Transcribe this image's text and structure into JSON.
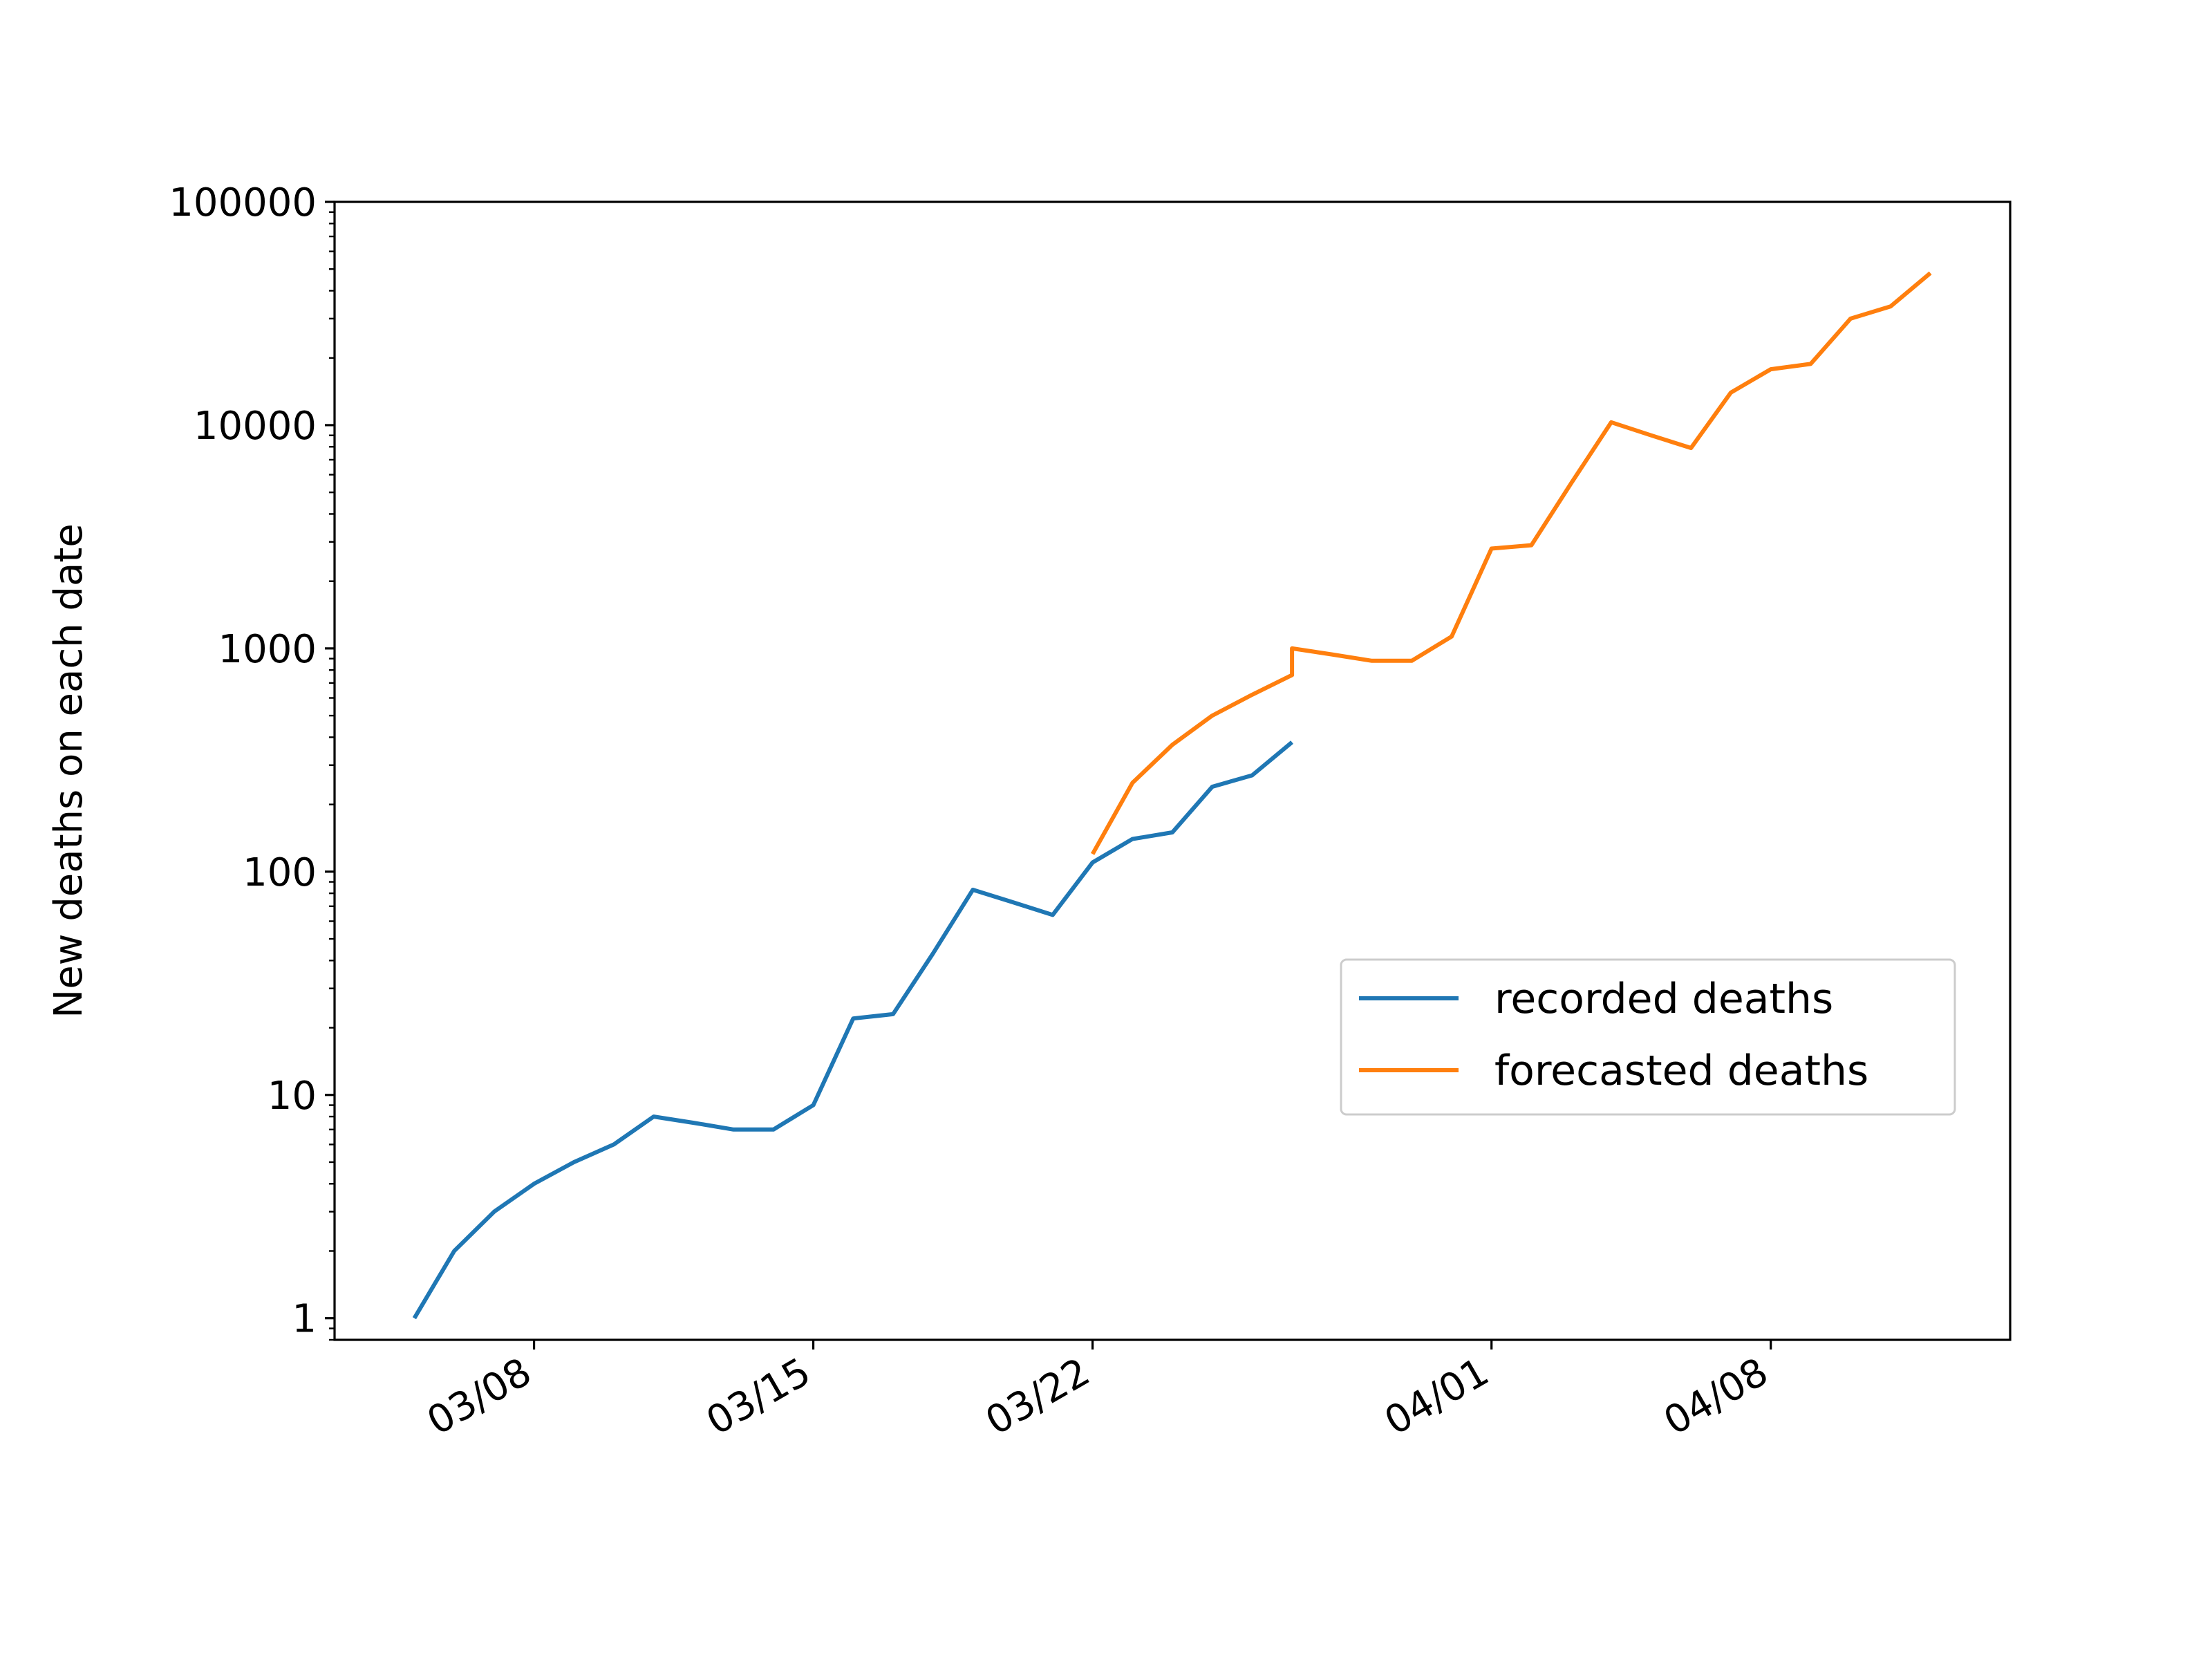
{
  "chart_data": {
    "type": "line",
    "title": "",
    "xlabel": "",
    "ylabel": "New deaths on each date",
    "yscale": "log",
    "ylim": [
      0.8,
      100000
    ],
    "xlim": [
      "2020-03-03",
      "2020-04-14"
    ],
    "x_ticks": [
      {
        "date": "2020-03-08",
        "label": "03/08"
      },
      {
        "date": "2020-03-15",
        "label": "03/15"
      },
      {
        "date": "2020-03-22",
        "label": "03/22"
      },
      {
        "date": "2020-04-01",
        "label": "04/01"
      },
      {
        "date": "2020-04-08",
        "label": "04/08"
      }
    ],
    "y_ticks": [
      {
        "value": 1,
        "label": "1"
      },
      {
        "value": 10,
        "label": "10"
      },
      {
        "value": 100,
        "label": "100"
      },
      {
        "value": 1000,
        "label": "1000"
      },
      {
        "value": 10000,
        "label": "10000"
      },
      {
        "value": 100000,
        "label": "100000"
      }
    ],
    "grid": false,
    "legend_position": "center-right",
    "series": [
      {
        "name": "recorded deaths",
        "color": "#1f77b4",
        "points": [
          [
            "2020-03-05",
            1
          ],
          [
            "2020-03-06",
            2
          ],
          [
            "2020-03-07",
            3
          ],
          [
            "2020-03-08",
            4
          ],
          [
            "2020-03-09",
            5
          ],
          [
            "2020-03-10",
            6
          ],
          [
            "2020-03-11",
            8
          ],
          [
            "2020-03-12",
            7.5
          ],
          [
            "2020-03-13",
            7
          ],
          [
            "2020-03-14",
            7
          ],
          [
            "2020-03-15",
            9
          ],
          [
            "2020-03-16",
            22
          ],
          [
            "2020-03-17",
            23
          ],
          [
            "2020-03-18",
            43
          ],
          [
            "2020-03-19",
            83
          ],
          [
            "2020-03-20",
            73
          ],
          [
            "2020-03-21",
            64
          ],
          [
            "2020-03-22",
            110
          ],
          [
            "2020-03-23",
            140
          ],
          [
            "2020-03-24",
            150
          ],
          [
            "2020-03-25",
            240
          ],
          [
            "2020-03-26",
            270
          ],
          [
            "2020-03-27",
            380
          ]
        ]
      },
      {
        "name": "forecasted deaths",
        "color": "#ff7f0e",
        "points": [
          [
            "2020-03-22",
            120
          ],
          [
            "2020-03-23",
            250
          ],
          [
            "2020-03-24",
            370
          ],
          [
            "2020-03-25",
            500
          ],
          [
            "2020-03-26",
            620
          ],
          [
            "2020-03-27",
            760
          ],
          [
            "2020-03-27",
            1000
          ],
          [
            "2020-03-28",
            940
          ],
          [
            "2020-03-29",
            880
          ],
          [
            "2020-03-30",
            880
          ],
          [
            "2020-03-31",
            1130
          ],
          [
            "2020-04-01",
            2800
          ],
          [
            "2020-04-02",
            2900
          ],
          [
            "2020-04-03",
            5500
          ],
          [
            "2020-04-04",
            10300
          ],
          [
            "2020-04-05",
            9000
          ],
          [
            "2020-04-06",
            7900
          ],
          [
            "2020-04-07",
            14000
          ],
          [
            "2020-04-08",
            17800
          ],
          [
            "2020-04-09",
            18800
          ],
          [
            "2020-04-10",
            30000
          ],
          [
            "2020-04-11",
            34000
          ],
          [
            "2020-04-12",
            48000
          ]
        ]
      }
    ]
  }
}
